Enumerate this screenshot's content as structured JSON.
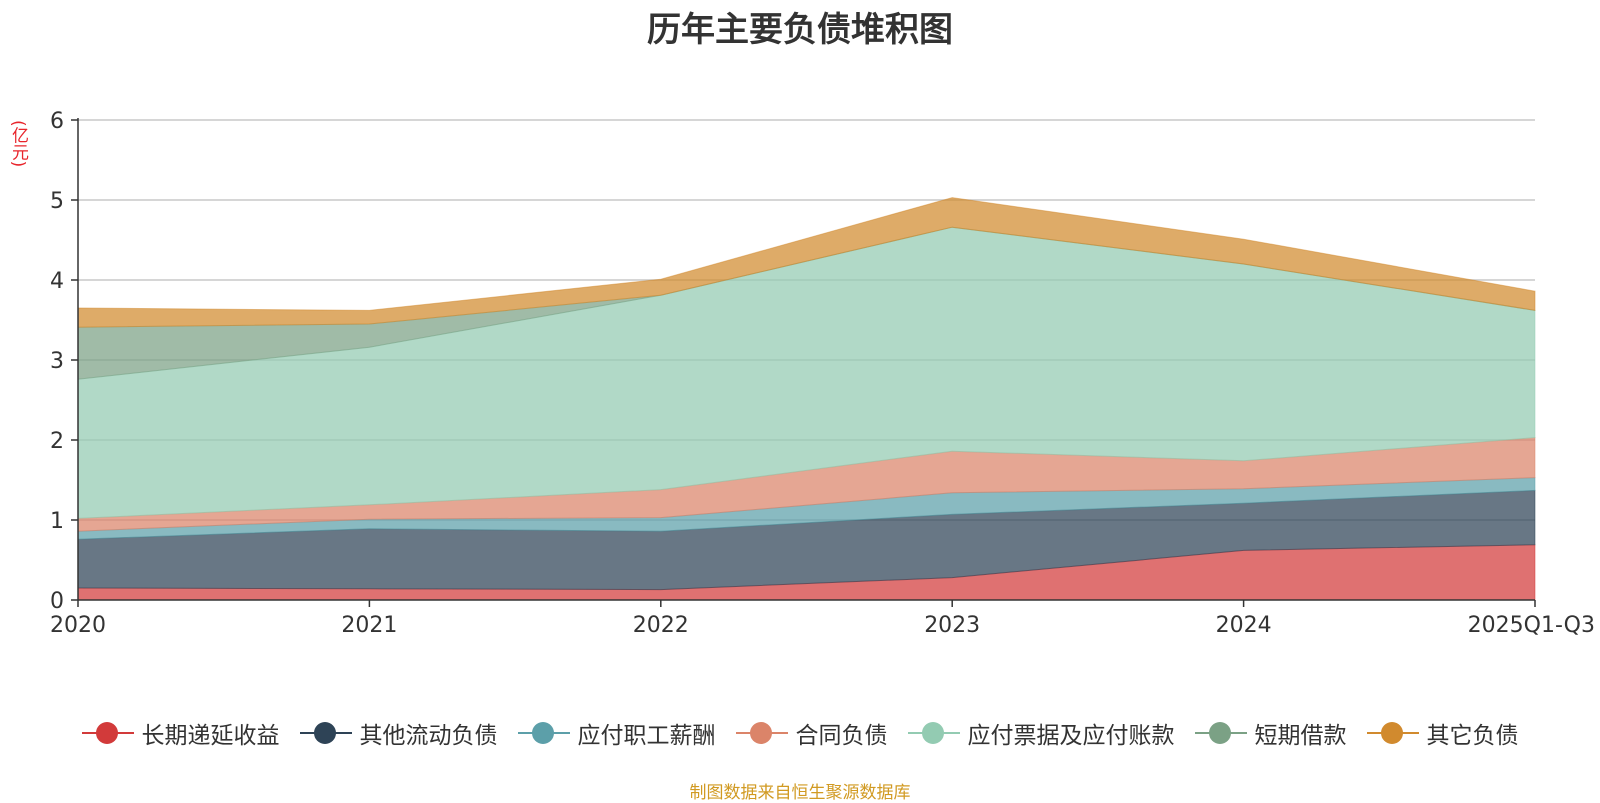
{
  "chart_data": {
    "type": "area",
    "stacked": true,
    "title": "历年主要负债堆积图",
    "unit_label": "(亿元)",
    "categories": [
      "2020",
      "2021",
      "2022",
      "2023",
      "2024",
      "2025Q1-Q3"
    ],
    "ylim": [
      0,
      6
    ],
    "yticks": [
      "0",
      "1",
      "2",
      "3",
      "4",
      "5",
      "6"
    ],
    "grid": true,
    "legend_position": "bottom",
    "series": [
      {
        "name": "长期递延收益",
        "color": "#d23a3a",
        "values": [
          0.15,
          0.14,
          0.13,
          0.28,
          0.62,
          0.69
        ]
      },
      {
        "name": "其他流动负债",
        "color": "#2e4356",
        "values": [
          0.61,
          0.75,
          0.73,
          0.79,
          0.59,
          0.68
        ]
      },
      {
        "name": "应付职工薪酬",
        "color": "#5c9fa9",
        "values": [
          0.1,
          0.12,
          0.17,
          0.27,
          0.18,
          0.16
        ]
      },
      {
        "name": "合同负债",
        "color": "#db8469",
        "values": [
          0.16,
          0.18,
          0.35,
          0.52,
          0.35,
          0.5
        ]
      },
      {
        "name": "应付票据及应付账款",
        "color": "#93cbb2",
        "values": [
          1.74,
          1.97,
          2.43,
          2.8,
          2.46,
          1.59
        ]
      },
      {
        "name": "短期借款",
        "color": "#7ba185",
        "values": [
          0.65,
          0.29,
          0.0,
          0.0,
          0.0,
          0.0
        ]
      },
      {
        "name": "其它负债",
        "color": "#d18a2e",
        "values": [
          0.24,
          0.17,
          0.2,
          0.37,
          0.31,
          0.24
        ]
      }
    ]
  },
  "source_text": "制图数据来自恒生聚源数据库"
}
